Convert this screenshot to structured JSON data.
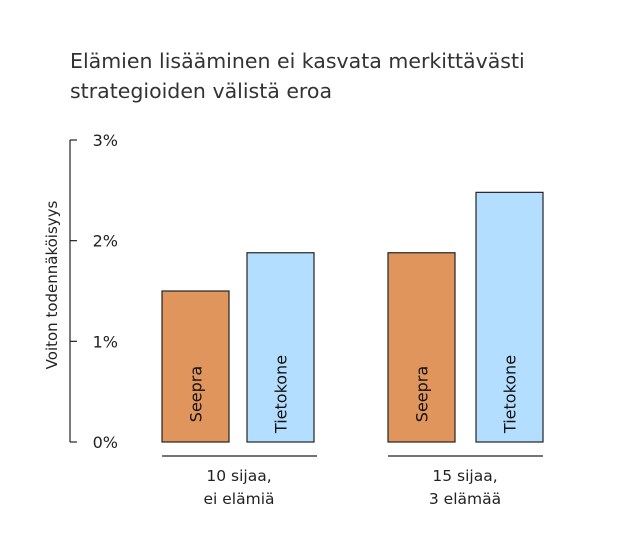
{
  "chart_data": {
    "type": "bar",
    "title_lines": [
      "Elämien lisääminen ei kasvata merkittävästi",
      "strategioiden välistä eroa"
    ],
    "ylabel": "Voiton todennäköisyys",
    "xlabel": "",
    "ylim": [
      0,
      3
    ],
    "yticks": [
      "0%",
      "1%",
      "2%",
      "3%"
    ],
    "grid": false,
    "groups": [
      {
        "label_lines": [
          "10 sijaa,",
          "ei elämiä"
        ],
        "bars": [
          {
            "label": "Seepra",
            "value": 1.5,
            "color": "#E0955D"
          },
          {
            "label": "Tietokone",
            "value": 1.88,
            "color": "#B3DEFF"
          }
        ]
      },
      {
        "label_lines": [
          "15 sijaa,",
          "3 elämää"
        ],
        "bars": [
          {
            "label": "Seepra",
            "value": 1.88,
            "color": "#E0955D"
          },
          {
            "label": "Tietokone",
            "value": 2.48,
            "color": "#B3DEFF"
          }
        ]
      }
    ]
  }
}
